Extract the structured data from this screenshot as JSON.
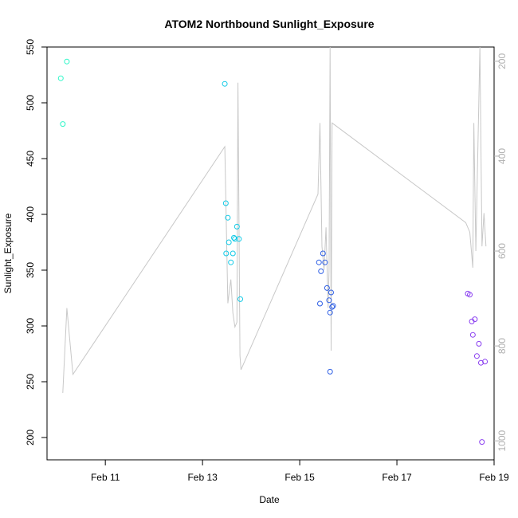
{
  "chart_data": {
    "type": "scatter",
    "title": "ATOM2 Northbound Sunlight_Exposure",
    "xlabel": "Date",
    "ylabel": "Sunlight_Exposure",
    "x_ticks": [
      {
        "date": "2000-02-11",
        "label": "Feb 11"
      },
      {
        "date": "2000-02-13",
        "label": "Feb 13"
      },
      {
        "date": "2000-02-15",
        "label": "Feb 15"
      },
      {
        "date": "2000-02-17",
        "label": "Feb 17"
      },
      {
        "date": "2000-02-19",
        "label": "Feb 19"
      }
    ],
    "xlim": [
      "2000-02-09T19:12",
      "2000-02-19T00:00"
    ],
    "ylim": [
      180,
      550
    ],
    "y_ticks": [
      200,
      250,
      300,
      350,
      400,
      450,
      500,
      550
    ],
    "y2lim": [
      1040,
      170
    ],
    "y2_ticks": [
      200,
      400,
      600,
      800,
      1000
    ],
    "grid": false,
    "series": [
      {
        "color": "#9e9e9e",
        "type": "line",
        "points": [
          [
            "2000-02-10T03:00",
            899
          ],
          [
            "2000-02-10T05:00",
            720
          ],
          [
            "2000-02-10T08:00",
            860
          ],
          [
            "2000-02-13T11:00",
            380
          ],
          [
            "2000-02-13T12:30",
            710
          ],
          [
            "2000-02-13T14:00",
            660
          ],
          [
            "2000-02-13T15:00",
            730
          ],
          [
            "2000-02-13T16:00",
            760
          ],
          [
            "2000-02-13T17:00",
            750
          ],
          [
            "2000-02-13T17:30",
            245
          ],
          [
            "2000-02-13T18:30",
            820
          ],
          [
            "2000-02-13T19:00",
            850
          ],
          [
            "2000-02-15T09:00",
            480
          ],
          [
            "2000-02-15T10:00",
            330
          ],
          [
            "2000-02-15T11:00",
            590
          ],
          [
            "2000-02-15T12:00",
            640
          ],
          [
            "2000-02-15T13:00",
            550
          ],
          [
            "2000-02-15T14:00",
            720
          ],
          [
            "2000-02-15T14:30",
            640
          ],
          [
            "2000-02-15T15:00",
            170
          ],
          [
            "2000-02-15T15:30",
            810
          ],
          [
            "2000-02-15T16:00",
            330
          ],
          [
            "2000-02-18T10:00",
            540
          ],
          [
            "2000-02-18T12:00",
            560
          ],
          [
            "2000-02-18T13:30",
            635
          ],
          [
            "2000-02-18T14:00",
            330
          ],
          [
            "2000-02-18T15:00",
            600
          ],
          [
            "2000-02-18T17:00",
            170
          ],
          [
            "2000-02-18T18:00",
            590
          ],
          [
            "2000-02-18T19:00",
            520
          ],
          [
            "2000-02-18T20:00",
            590
          ]
        ]
      },
      {
        "color": "#2ef7c8",
        "type": "scatter",
        "points": [
          [
            "2000-02-10T02:00",
            522
          ],
          [
            "2000-02-10T03:00",
            481
          ],
          [
            "2000-02-10T05:00",
            537
          ]
        ]
      },
      {
        "color": "#13cae6",
        "type": "scatter",
        "points": [
          [
            "2000-02-13T11:00",
            517
          ],
          [
            "2000-02-13T11:30",
            410
          ],
          [
            "2000-02-13T11:40",
            365
          ],
          [
            "2000-02-13T12:30",
            397
          ],
          [
            "2000-02-13T13:00",
            375
          ],
          [
            "2000-02-13T14:00",
            357
          ],
          [
            "2000-02-13T15:00",
            365
          ],
          [
            "2000-02-13T15:30",
            379
          ],
          [
            "2000-02-13T16:00",
            378
          ],
          [
            "2000-02-13T17:00",
            389
          ],
          [
            "2000-02-13T18:00",
            378
          ],
          [
            "2000-02-13T18:40",
            324
          ]
        ]
      },
      {
        "color": "#2e5fe5",
        "type": "scatter",
        "points": [
          [
            "2000-02-15T09:30",
            357
          ],
          [
            "2000-02-15T10:00",
            320
          ],
          [
            "2000-02-15T10:30",
            349
          ],
          [
            "2000-02-15T11:30",
            365
          ],
          [
            "2000-02-15T12:30",
            357
          ],
          [
            "2000-02-15T13:30",
            334
          ],
          [
            "2000-02-15T14:30",
            323
          ],
          [
            "2000-02-15T15:00",
            312
          ],
          [
            "2000-02-15T15:00",
            259
          ],
          [
            "2000-02-15T15:30",
            330
          ],
          [
            "2000-02-15T16:00",
            317
          ],
          [
            "2000-02-15T16:30",
            318
          ]
        ]
      },
      {
        "color": "#8a3ff0",
        "type": "scatter",
        "points": [
          [
            "2000-02-18T11:00",
            329
          ],
          [
            "2000-02-18T12:00",
            328
          ],
          [
            "2000-02-18T13:00",
            304
          ],
          [
            "2000-02-18T13:30",
            292
          ],
          [
            "2000-02-18T14:30",
            306
          ],
          [
            "2000-02-18T15:30",
            273
          ],
          [
            "2000-02-18T16:30",
            284
          ],
          [
            "2000-02-18T17:30",
            267
          ],
          [
            "2000-02-18T18:00",
            196
          ],
          [
            "2000-02-18T19:30",
            268
          ]
        ]
      }
    ]
  }
}
